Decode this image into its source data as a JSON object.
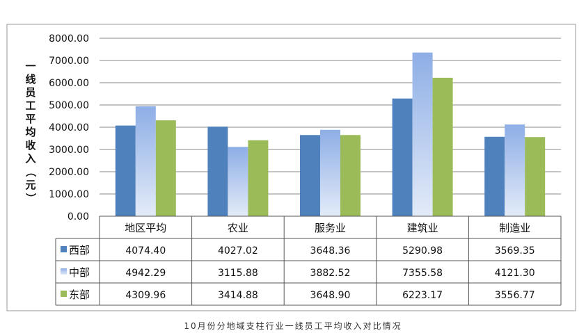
{
  "chart_data": {
    "type": "bar",
    "title": "",
    "ylabel": "一线员工平均收入（元）",
    "ylim": [
      0,
      8000
    ],
    "yticks": [
      "8000.00",
      "7000.00",
      "6000.00",
      "5000.00",
      "4000.00",
      "3000.00",
      "2000.00",
      "1000.00",
      "0.00"
    ],
    "categories": [
      "地区平均",
      "农业",
      "服务业",
      "建筑业",
      "制造业"
    ],
    "series": [
      {
        "name": "西部",
        "color": "#4f81bd",
        "values": [
          4074.4,
          4027.02,
          3648.36,
          5290.98,
          3569.35
        ],
        "labels": [
          "4074.40",
          "4027.02",
          "3648.36",
          "5290.98",
          "3569.35"
        ]
      },
      {
        "name": "中部",
        "color": "#95b3e6",
        "values": [
          4942.29,
          3115.88,
          3882.52,
          7355.58,
          4121.3
        ],
        "labels": [
          "4942.29",
          "3115.88",
          "3882.52",
          "7355.58",
          "4121.30"
        ]
      },
      {
        "name": "东部",
        "color": "#9bbb59",
        "values": [
          4309.96,
          3414.88,
          3648.9,
          6223.17,
          3556.77
        ],
        "labels": [
          "4309.96",
          "3414.88",
          "3648.90",
          "6223.17",
          "3556.77"
        ]
      }
    ],
    "grid": true,
    "legend": "data-table"
  },
  "caption": "10月份分地域支柱行业一线员工平均收入对比情况"
}
